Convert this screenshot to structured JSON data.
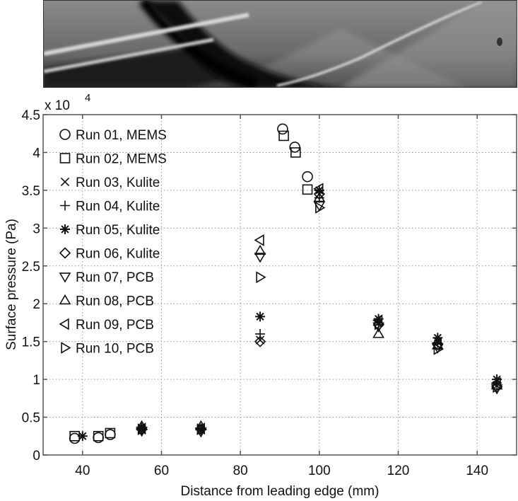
{
  "image_strip": {
    "description": "schlieren flow visualization"
  },
  "chart_data": {
    "type": "scatter",
    "title": "",
    "xlabel": "Distance from leading edge (mm)",
    "ylabel": "Surface pressure (Pa)",
    "y_multiplier_label": "x 10",
    "y_multiplier_exponent": "4",
    "xlim": [
      30,
      150
    ],
    "ylim": [
      0,
      4.5
    ],
    "x_ticks": [
      40,
      60,
      80,
      100,
      120,
      140
    ],
    "y_ticks": [
      0,
      0.5,
      1,
      1.5,
      2,
      2.5,
      3,
      3.5,
      4,
      4.5
    ],
    "y_tick_labels": [
      "0",
      "0.5",
      "1",
      "1.5",
      "2",
      "2.5",
      "3",
      "3.5",
      "4",
      "4.5"
    ],
    "grid": true,
    "legend_position": "upper left",
    "series": [
      {
        "name": "Run 01, MEMS",
        "marker": "circle",
        "points": [
          [
            38,
            0.22
          ],
          [
            44,
            0.23
          ],
          [
            47,
            0.27
          ],
          [
            90.7,
            4.31
          ],
          [
            93.8,
            4.07
          ],
          [
            97,
            3.68
          ]
        ]
      },
      {
        "name": "Run 02, MEMS",
        "marker": "square",
        "points": [
          [
            38,
            0.25
          ],
          [
            44,
            0.25
          ],
          [
            47,
            0.29
          ],
          [
            91,
            4.22
          ],
          [
            94,
            4.0
          ],
          [
            97,
            3.51
          ]
        ]
      },
      {
        "name": "Run 03, Kulite",
        "marker": "x",
        "points": [
          [
            55,
            0.33
          ],
          [
            70,
            0.33
          ],
          [
            85,
            1.52
          ],
          [
            100,
            3.45
          ],
          [
            115,
            1.75
          ],
          [
            130,
            1.5
          ],
          [
            145,
            0.92
          ]
        ]
      },
      {
        "name": "Run 04, Kulite",
        "marker": "plus",
        "points": [
          [
            55,
            0.36
          ],
          [
            70,
            0.35
          ],
          [
            85,
            1.6
          ],
          [
            100,
            3.4
          ],
          [
            115,
            1.72
          ],
          [
            130,
            1.48
          ],
          [
            145,
            0.95
          ]
        ]
      },
      {
        "name": "Run 05, Kulite",
        "marker": "star",
        "points": [
          [
            40,
            0.25
          ],
          [
            55,
            0.35
          ],
          [
            70,
            0.34
          ],
          [
            85,
            1.83
          ],
          [
            100,
            3.5
          ],
          [
            115,
            1.8
          ],
          [
            130,
            1.55
          ],
          [
            145,
            1.0
          ]
        ]
      },
      {
        "name": "Run 06, Kulite",
        "marker": "diamond",
        "points": [
          [
            55,
            0.34
          ],
          [
            70,
            0.34
          ],
          [
            85,
            1.5
          ],
          [
            100,
            3.45
          ],
          [
            115,
            1.72
          ],
          [
            130,
            1.46
          ],
          [
            145,
            0.9
          ]
        ]
      },
      {
        "name": "Run 07, PCB",
        "marker": "triangle-down",
        "points": [
          [
            55,
            0.32
          ],
          [
            70,
            0.31
          ],
          [
            85,
            2.62
          ],
          [
            100,
            3.3
          ],
          [
            115,
            1.7
          ],
          [
            130,
            1.42
          ],
          [
            145,
            0.88
          ]
        ]
      },
      {
        "name": "Run 08, PCB",
        "marker": "triangle-up",
        "points": [
          [
            55,
            0.38
          ],
          [
            70,
            0.38
          ],
          [
            85,
            2.7
          ],
          [
            100,
            3.4
          ],
          [
            115,
            1.6
          ],
          [
            130,
            1.45
          ],
          [
            145,
            0.92
          ]
        ]
      },
      {
        "name": "Run 09, PCB",
        "marker": "triangle-left",
        "points": [
          [
            55,
            0.35
          ],
          [
            70,
            0.35
          ],
          [
            85,
            2.84
          ],
          [
            100,
            3.52
          ],
          [
            115,
            1.78
          ],
          [
            130,
            1.48
          ],
          [
            145,
            0.95
          ]
        ]
      },
      {
        "name": "Run 10, PCB",
        "marker": "triangle-right",
        "points": [
          [
            55,
            0.34
          ],
          [
            70,
            0.34
          ],
          [
            85,
            2.35
          ],
          [
            100,
            3.27
          ],
          [
            115,
            1.73
          ],
          [
            130,
            1.4
          ],
          [
            145,
            0.9
          ]
        ]
      }
    ]
  }
}
